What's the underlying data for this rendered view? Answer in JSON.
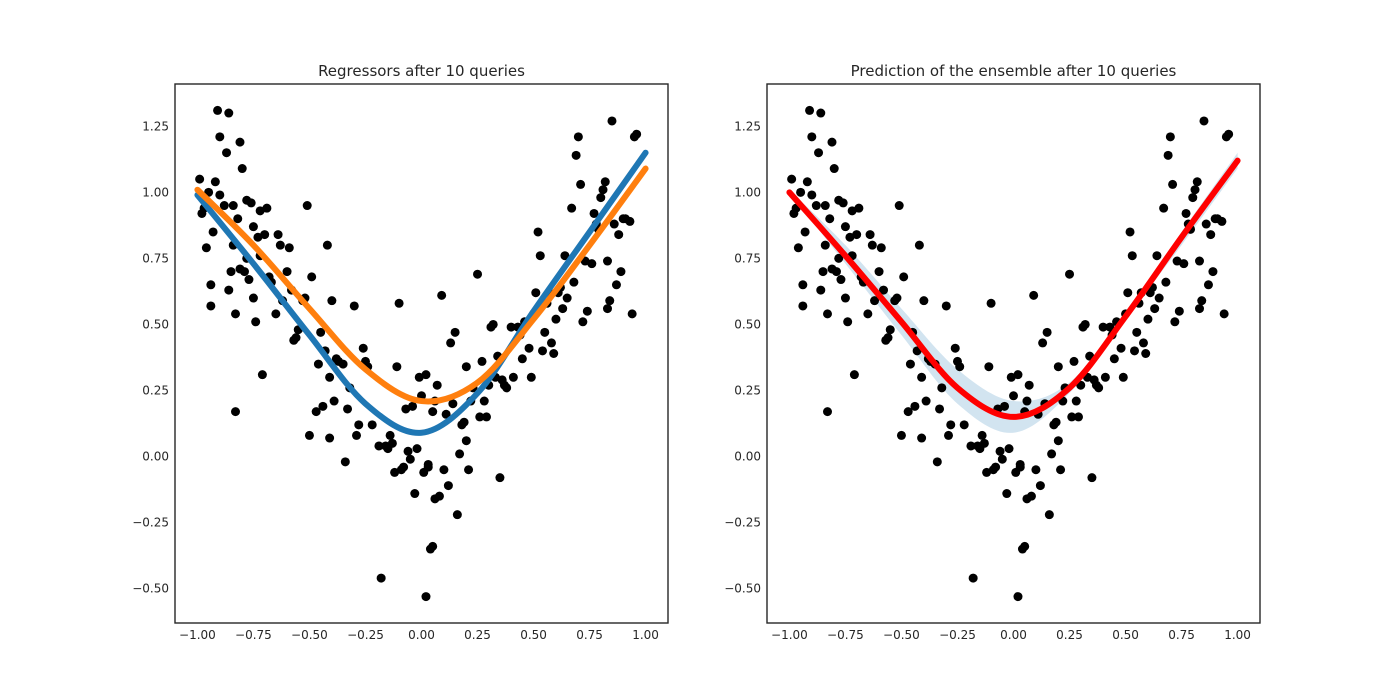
{
  "chart_data": [
    {
      "type": "scatter",
      "title": "Regressors after 10 queries",
      "xlim": [
        -1.1,
        1.1
      ],
      "ylim": [
        -0.63,
        1.41
      ],
      "xticks": [
        -1.0,
        -0.75,
        -0.5,
        -0.25,
        0.0,
        0.25,
        0.5,
        0.75,
        1.0
      ],
      "xtick_labels": [
        "−1.00",
        "−0.75",
        "−0.50",
        "−0.25",
        "0.00",
        "0.25",
        "0.50",
        "0.75",
        "1.00"
      ],
      "yticks": [
        -0.5,
        -0.25,
        0.0,
        0.25,
        0.5,
        0.75,
        1.0,
        1.25
      ],
      "ytick_labels": [
        "−0.50",
        "−0.25",
        "0.00",
        "0.25",
        "0.50",
        "0.75",
        "1.00",
        "1.25"
      ],
      "grid": false,
      "points_color": "#000000",
      "points": [
        [
          -0.99,
          1.05
        ],
        [
          -0.98,
          0.92
        ],
        [
          -0.97,
          0.94
        ],
        [
          -0.96,
          0.79
        ],
        [
          -0.95,
          1.0
        ],
        [
          -0.94,
          0.65
        ],
        [
          -0.94,
          0.57
        ],
        [
          -0.93,
          0.85
        ],
        [
          -0.92,
          1.04
        ],
        [
          -0.91,
          1.31
        ],
        [
          -0.9,
          0.99
        ],
        [
          -0.9,
          1.21
        ],
        [
          -0.88,
          0.95
        ],
        [
          -0.87,
          1.15
        ],
        [
          -0.86,
          1.3
        ],
        [
          -0.86,
          0.63
        ],
        [
          -0.85,
          0.7
        ],
        [
          -0.84,
          0.95
        ],
        [
          -0.84,
          0.8
        ],
        [
          -0.83,
          0.54
        ],
        [
          -0.83,
          0.17
        ],
        [
          -0.82,
          0.9
        ],
        [
          -0.81,
          1.19
        ],
        [
          -0.81,
          0.71
        ],
        [
          -0.8,
          1.09
        ],
        [
          -0.79,
          0.7
        ],
        [
          -0.78,
          0.75
        ],
        [
          -0.78,
          0.97
        ],
        [
          -0.77,
          0.67
        ],
        [
          -0.76,
          0.96
        ],
        [
          -0.75,
          0.87
        ],
        [
          -0.75,
          0.6
        ],
        [
          -0.74,
          0.51
        ],
        [
          -0.73,
          0.83
        ],
        [
          -0.72,
          0.93
        ],
        [
          -0.72,
          0.76
        ],
        [
          -0.71,
          0.31
        ],
        [
          -0.7,
          0.84
        ],
        [
          -0.69,
          0.94
        ],
        [
          -0.68,
          0.68
        ],
        [
          -0.67,
          0.66
        ],
        [
          -0.65,
          0.54
        ],
        [
          -0.64,
          0.84
        ],
        [
          -0.63,
          0.8
        ],
        [
          -0.62,
          0.59
        ],
        [
          -0.6,
          0.7
        ],
        [
          -0.59,
          0.79
        ],
        [
          -0.58,
          0.63
        ],
        [
          -0.57,
          0.44
        ],
        [
          -0.56,
          0.45
        ],
        [
          -0.55,
          0.48
        ],
        [
          -0.53,
          0.59
        ],
        [
          -0.52,
          0.6
        ],
        [
          -0.51,
          0.95
        ],
        [
          -0.5,
          0.08
        ],
        [
          -0.49,
          0.68
        ],
        [
          -0.47,
          0.17
        ],
        [
          -0.46,
          0.35
        ],
        [
          -0.45,
          0.47
        ],
        [
          -0.44,
          0.19
        ],
        [
          -0.43,
          0.4
        ],
        [
          -0.42,
          0.8
        ],
        [
          -0.41,
          0.3
        ],
        [
          -0.41,
          0.07
        ],
        [
          -0.4,
          0.59
        ],
        [
          -0.39,
          0.21
        ],
        [
          -0.38,
          0.37
        ],
        [
          -0.37,
          0.36
        ],
        [
          -0.35,
          0.35
        ],
        [
          -0.34,
          -0.02
        ],
        [
          -0.33,
          0.18
        ],
        [
          -0.32,
          0.26
        ],
        [
          -0.3,
          0.57
        ],
        [
          -0.29,
          0.08
        ],
        [
          -0.28,
          0.12
        ],
        [
          -0.26,
          0.41
        ],
        [
          -0.25,
          0.36
        ],
        [
          -0.24,
          0.34
        ],
        [
          -0.22,
          0.12
        ],
        [
          -0.19,
          0.04
        ],
        [
          -0.18,
          -0.46
        ],
        [
          -0.16,
          0.04
        ],
        [
          -0.15,
          0.03
        ],
        [
          -0.14,
          0.08
        ],
        [
          -0.13,
          0.05
        ],
        [
          -0.12,
          -0.06
        ],
        [
          -0.11,
          0.34
        ],
        [
          -0.1,
          0.58
        ],
        [
          -0.09,
          -0.05
        ],
        [
          -0.08,
          -0.04
        ],
        [
          -0.07,
          0.18
        ],
        [
          -0.06,
          0.02
        ],
        [
          -0.05,
          -0.01
        ],
        [
          -0.04,
          0.19
        ],
        [
          -0.03,
          -0.14
        ],
        [
          -0.02,
          0.03
        ],
        [
          -0.01,
          0.3
        ],
        [
          0.0,
          0.23
        ],
        [
          0.01,
          -0.06
        ],
        [
          0.02,
          -0.53
        ],
        [
          0.02,
          0.31
        ],
        [
          0.03,
          -0.04
        ],
        [
          0.03,
          -0.03
        ],
        [
          0.04,
          -0.35
        ],
        [
          0.05,
          -0.34
        ],
        [
          0.05,
          0.17
        ],
        [
          0.06,
          0.21
        ],
        [
          0.07,
          0.27
        ],
        [
          0.06,
          -0.16
        ],
        [
          0.08,
          -0.15
        ],
        [
          0.09,
          0.61
        ],
        [
          0.1,
          -0.05
        ],
        [
          0.11,
          0.16
        ],
        [
          0.12,
          -0.11
        ],
        [
          0.13,
          0.43
        ],
        [
          0.14,
          0.2
        ],
        [
          0.15,
          0.47
        ],
        [
          0.16,
          -0.22
        ],
        [
          0.17,
          0.01
        ],
        [
          0.18,
          0.12
        ],
        [
          0.19,
          0.13
        ],
        [
          0.2,
          0.34
        ],
        [
          0.2,
          0.06
        ],
        [
          0.21,
          -0.05
        ],
        [
          0.22,
          0.21
        ],
        [
          0.23,
          0.26
        ],
        [
          0.25,
          0.69
        ],
        [
          0.26,
          0.15
        ],
        [
          0.27,
          0.36
        ],
        [
          0.28,
          0.21
        ],
        [
          0.29,
          0.15
        ],
        [
          0.3,
          0.27
        ],
        [
          0.31,
          0.49
        ],
        [
          0.32,
          0.5
        ],
        [
          0.33,
          0.3
        ],
        [
          0.34,
          0.38
        ],
        [
          0.35,
          -0.08
        ],
        [
          0.36,
          0.29
        ],
        [
          0.37,
          0.27
        ],
        [
          0.38,
          0.26
        ],
        [
          0.4,
          0.49
        ],
        [
          0.41,
          0.3
        ],
        [
          0.43,
          0.49
        ],
        [
          0.44,
          0.46
        ],
        [
          0.45,
          0.37
        ],
        [
          0.46,
          0.51
        ],
        [
          0.48,
          0.41
        ],
        [
          0.49,
          0.3
        ],
        [
          0.5,
          0.54
        ],
        [
          0.51,
          0.62
        ],
        [
          0.52,
          0.85
        ],
        [
          0.53,
          0.76
        ],
        [
          0.54,
          0.4
        ],
        [
          0.55,
          0.47
        ],
        [
          0.56,
          0.58
        ],
        [
          0.57,
          0.62
        ],
        [
          0.58,
          0.43
        ],
        [
          0.59,
          0.39
        ],
        [
          0.6,
          0.52
        ],
        [
          0.61,
          0.62
        ],
        [
          0.62,
          0.64
        ],
        [
          0.63,
          0.56
        ],
        [
          0.64,
          0.76
        ],
        [
          0.65,
          0.6
        ],
        [
          0.67,
          0.94
        ],
        [
          0.68,
          0.66
        ],
        [
          0.69,
          1.14
        ],
        [
          0.7,
          1.21
        ],
        [
          0.71,
          1.03
        ],
        [
          0.72,
          0.51
        ],
        [
          0.73,
          0.74
        ],
        [
          0.74,
          0.55
        ],
        [
          0.76,
          0.73
        ],
        [
          0.77,
          0.92
        ],
        [
          0.78,
          0.88
        ],
        [
          0.79,
          0.86
        ],
        [
          0.8,
          0.98
        ],
        [
          0.81,
          1.01
        ],
        [
          0.82,
          1.04
        ],
        [
          0.83,
          0.74
        ],
        [
          0.83,
          0.56
        ],
        [
          0.84,
          0.59
        ],
        [
          0.85,
          1.27
        ],
        [
          0.86,
          0.88
        ],
        [
          0.87,
          0.65
        ],
        [
          0.88,
          0.84
        ],
        [
          0.89,
          0.7
        ],
        [
          0.9,
          0.9
        ],
        [
          0.91,
          0.9
        ],
        [
          0.93,
          0.89
        ],
        [
          0.94,
          0.54
        ],
        [
          0.95,
          1.21
        ],
        [
          0.96,
          1.22
        ]
      ],
      "series": [
        {
          "color": "#1f77b4",
          "x": [
            -1.0,
            -0.75,
            -0.5,
            -0.25,
            0.0,
            0.25,
            0.5,
            0.75,
            1.0
          ],
          "values": [
            0.99,
            0.73,
            0.46,
            0.2,
            0.09,
            0.24,
            0.55,
            0.85,
            1.15
          ]
        },
        {
          "color": "#ff7f0e",
          "x": [
            -1.0,
            -0.75,
            -0.5,
            -0.25,
            0.0,
            0.25,
            0.5,
            0.75,
            1.0
          ],
          "values": [
            1.01,
            0.8,
            0.56,
            0.33,
            0.21,
            0.28,
            0.52,
            0.8,
            1.09
          ]
        }
      ]
    },
    {
      "type": "scatter",
      "title": "Prediction of the ensemble after 10 queries",
      "xlim": [
        -1.1,
        1.1
      ],
      "ylim": [
        -0.63,
        1.41
      ],
      "xticks": [
        -1.0,
        -0.75,
        -0.5,
        -0.25,
        0.0,
        0.25,
        0.5,
        0.75,
        1.0
      ],
      "xtick_labels": [
        "−1.00",
        "−0.75",
        "−0.50",
        "−0.25",
        "0.00",
        "0.25",
        "0.50",
        "0.75",
        "1.00"
      ],
      "yticks": [
        -0.5,
        -0.25,
        0.0,
        0.25,
        0.5,
        0.75,
        1.0,
        1.25
      ],
      "ytick_labels": [
        "−0.50",
        "−0.25",
        "0.00",
        "0.25",
        "0.50",
        "0.75",
        "1.00",
        "1.25"
      ],
      "grid": false,
      "points_color": "#000000",
      "points": "same as first chart",
      "series": [
        {
          "color": "#ff0000",
          "x": [
            -1.0,
            -0.75,
            -0.5,
            -0.25,
            0.0,
            0.25,
            0.5,
            0.75,
            1.0
          ],
          "values": [
            1.0,
            0.76,
            0.51,
            0.26,
            0.15,
            0.26,
            0.53,
            0.83,
            1.12
          ],
          "band_color": "#1f77b4",
          "band_lower": [
            1.0,
            0.73,
            0.46,
            0.2,
            0.09,
            0.24,
            0.52,
            0.8,
            1.09
          ],
          "band_upper": [
            1.01,
            0.8,
            0.56,
            0.33,
            0.21,
            0.28,
            0.55,
            0.85,
            1.15
          ]
        }
      ]
    }
  ]
}
